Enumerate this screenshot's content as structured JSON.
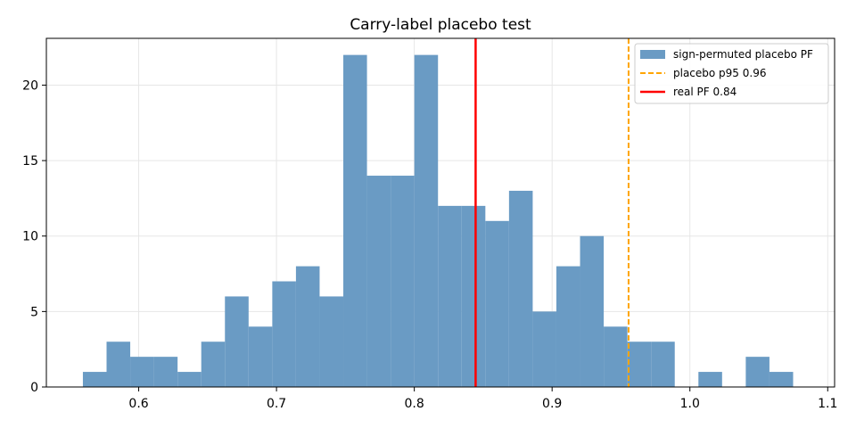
{
  "chart_data": {
    "type": "histogram",
    "title": "Carry-label placebo test",
    "xlabel": "",
    "ylabel": "",
    "xlim": [
      0.533,
      1.105
    ],
    "ylim": [
      0,
      23.1
    ],
    "xticks": [
      0.6,
      0.7,
      0.8,
      0.9,
      1.0,
      1.1
    ],
    "xtick_labels": [
      "0.6",
      "0.7",
      "0.8",
      "0.9",
      "1.0",
      "1.1"
    ],
    "yticks": [
      0,
      5,
      10,
      15,
      20
    ],
    "ytick_labels": [
      "0",
      "5",
      "10",
      "15",
      "20"
    ],
    "grid": true,
    "legend_position": "top-right",
    "series": [
      {
        "name": "sign-permuted placebo PF",
        "color": "#6a9bc4",
        "bin_start": 0.5595,
        "bin_width": 0.01718,
        "counts": [
          1,
          3,
          2,
          2,
          1,
          3,
          6,
          4,
          7,
          8,
          6,
          22,
          14,
          14,
          22,
          12,
          12,
          11,
          13,
          5,
          8,
          10,
          4,
          3,
          3,
          0,
          1,
          0,
          2,
          1
        ]
      }
    ],
    "reference_lines": [
      {
        "name": "placebo p95 0.96",
        "value": 0.9555,
        "color": "#ffa500",
        "style": "dashed"
      },
      {
        "name": "real PF 0.84",
        "value": 0.8445,
        "color": "#ff0000",
        "style": "solid"
      }
    ]
  }
}
